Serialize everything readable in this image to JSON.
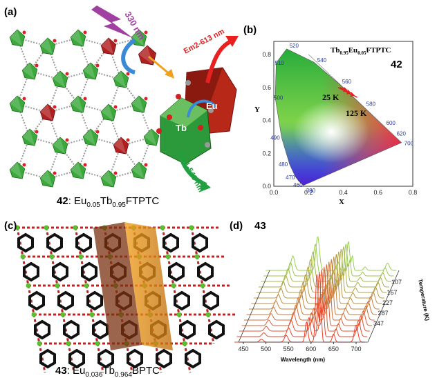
{
  "panel_a": {
    "label": "(a)",
    "excitation": "330 nm",
    "em2": "Em2-613 nm",
    "em1": "Em1-543 nm",
    "eu": "Eu",
    "tb": "Tb",
    "caption": {
      "number": "42",
      "p1": ": Eu",
      "s1": "0.05",
      "p2": "Tb",
      "s2": "0.95",
      "p3": "FTPTC"
    }
  },
  "panel_b": {
    "label": "(b)",
    "title": {
      "p1": "Tb",
      "s1": "0.95",
      "p2": "Eu",
      "s2": "0.05",
      "p3": "FTPTC"
    },
    "number": "42",
    "point_low": "25 K",
    "point_high": "125 K",
    "x_label": "X",
    "y_label": "Y",
    "xticks": [
      "0.0",
      "0.2",
      "0.4",
      "0.6",
      "0.8"
    ],
    "yticks": [
      "0.0",
      "0.2",
      "0.4",
      "0.6",
      "0.8"
    ],
    "wavelengths": [
      "380",
      "460",
      "470",
      "480",
      "490",
      "500",
      "510",
      "520",
      "540",
      "560",
      "580",
      "600",
      "620",
      "700"
    ]
  },
  "panel_c": {
    "label": "(c)",
    "caption": {
      "number": "43",
      "p1": ": Eu",
      "s1": "0.036",
      "p2": "Tb",
      "s2": "0.964",
      "p3": "BPTC"
    }
  },
  "panel_d": {
    "label": "(d)",
    "number": "43",
    "x_label": "Wavelength (nm)",
    "xticks": [
      "450",
      "500",
      "550",
      "600",
      "650",
      "700"
    ],
    "temperatures": [
      "107",
      "167",
      "227",
      "287",
      "347"
    ],
    "temperature_label": "Temperature (K)"
  }
}
